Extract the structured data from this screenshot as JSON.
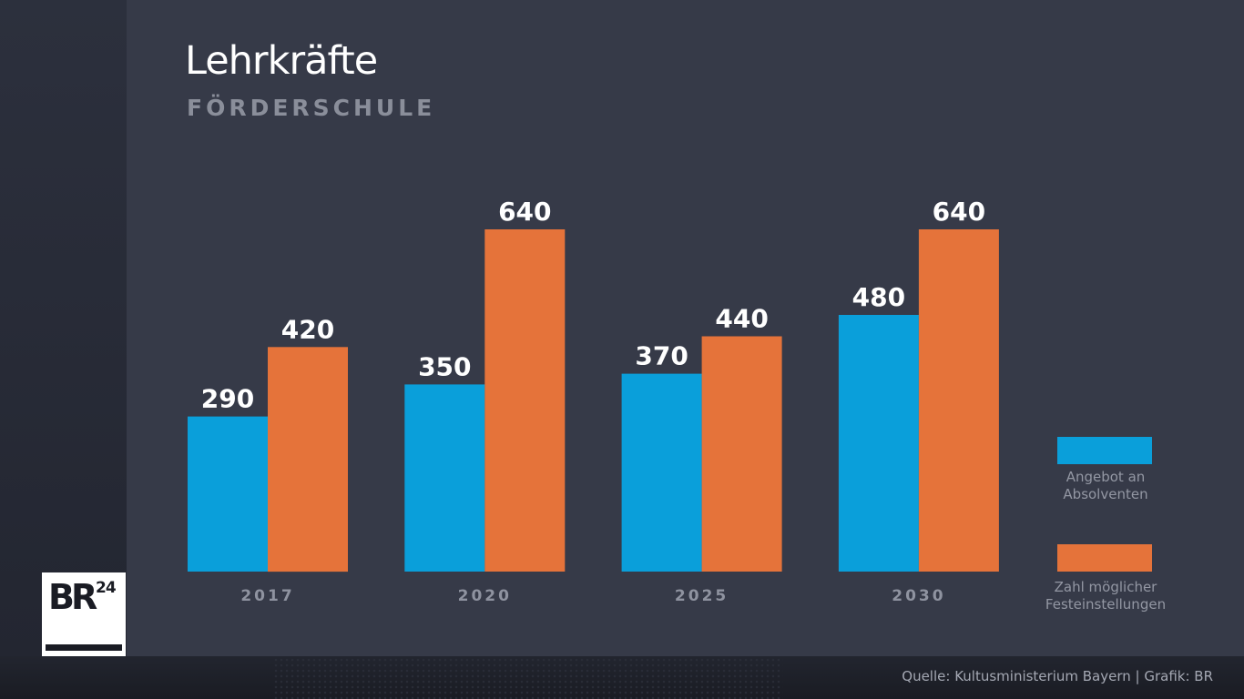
{
  "chart_data": {
    "type": "bar",
    "title": "Lehrkräfte",
    "subtitle": "FÖRDERSCHULE",
    "categories": [
      "2017",
      "2020",
      "2025",
      "2030"
    ],
    "series": [
      {
        "name": "Angebot an Absolventen",
        "name_lines": [
          "Angebot an",
          "Absolventen"
        ],
        "color": "#0a9fda",
        "values": [
          290,
          350,
          370,
          480
        ]
      },
      {
        "name": "Zahl möglicher Festeinstellungen",
        "name_lines": [
          "Zahl möglicher",
          "Festeinstellungen"
        ],
        "color": "#e5733a",
        "values": [
          420,
          640,
          440,
          640
        ]
      }
    ],
    "xlabel": "",
    "ylabel": "",
    "ylim": [
      0,
      640
    ],
    "grid": false,
    "legend_position": "right",
    "data_labels": true
  },
  "footer": {
    "source": "Quelle: Kultusministerium Bayern | Grafik: BR"
  },
  "logo": {
    "text": "BR",
    "superscript": "24"
  }
}
